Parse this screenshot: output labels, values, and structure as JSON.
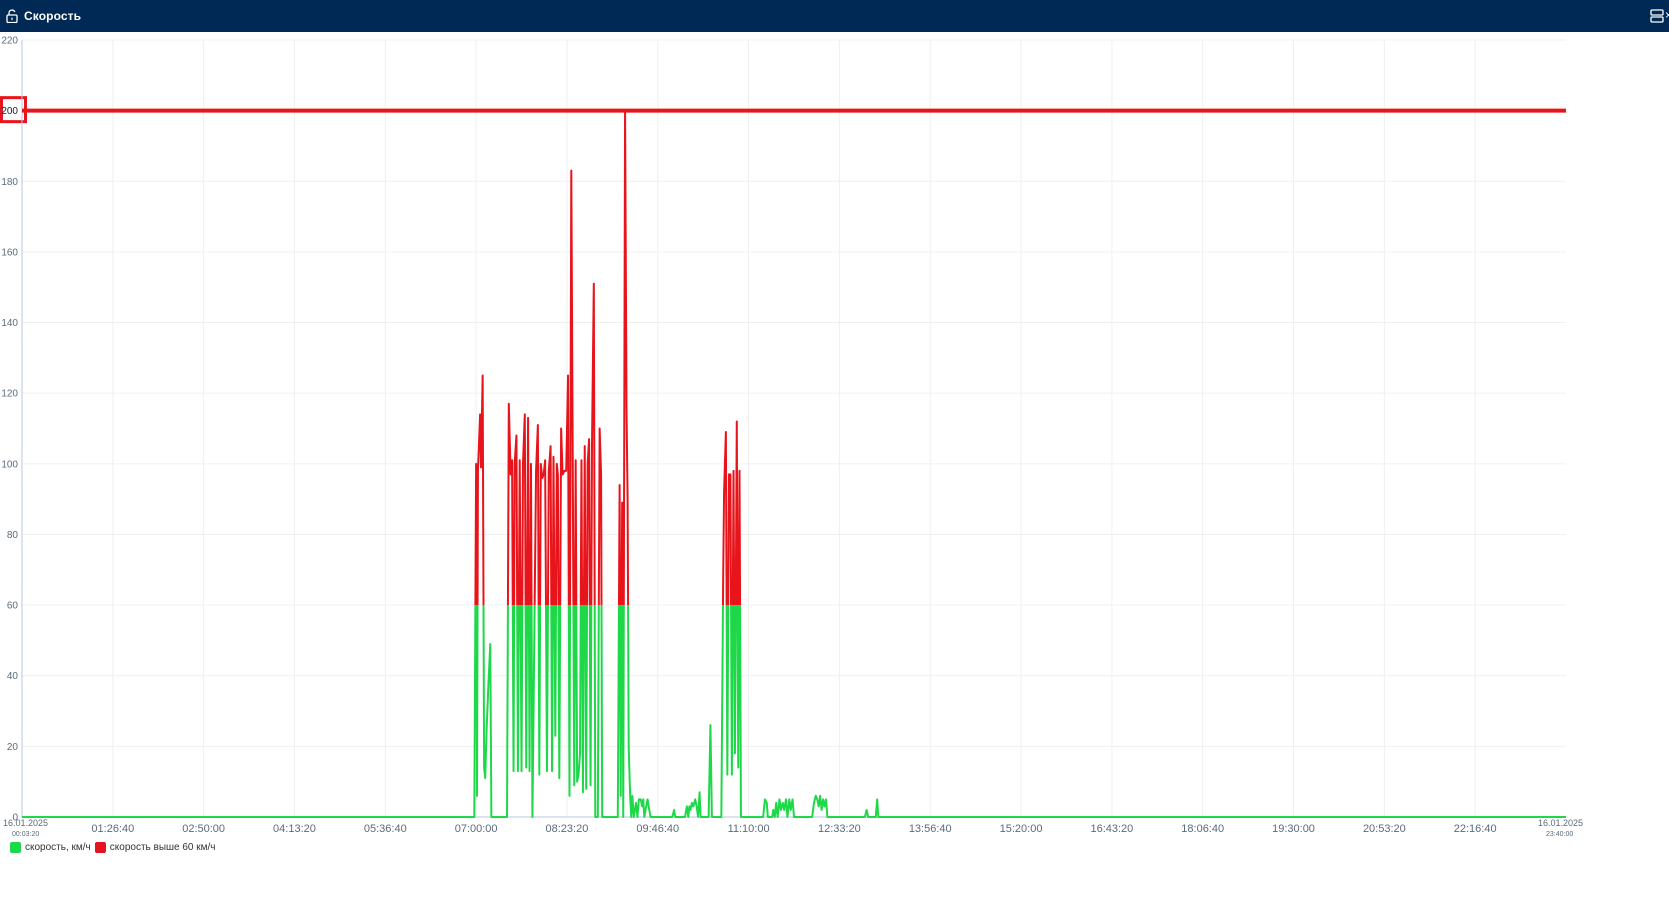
{
  "window": {
    "title": "Скорость",
    "icons": {
      "lock": "unlock-icon",
      "layout": "layout-icon",
      "close": "close-icon"
    }
  },
  "chart_data": {
    "type": "line",
    "title": "",
    "xlabel": "",
    "ylabel": "",
    "ylim": [
      0,
      220
    ],
    "yticks": [
      0,
      20,
      40,
      60,
      80,
      100,
      120,
      140,
      160,
      180,
      200,
      220
    ],
    "highlighted_ytick": 200,
    "grid": true,
    "legend_position": "bottom-left",
    "x_range_seconds": [
      200,
      85200
    ],
    "x_start_labels": [
      "16.01.2025",
      "00:03:20"
    ],
    "x_end_labels": [
      "16.01.2025",
      "23:40:00"
    ],
    "x_tick_labels": [
      "01:26:40",
      "02:50:00",
      "04:13:20",
      "05:36:40",
      "07:00:00",
      "08:23:20",
      "09:46:40",
      "11:10:00",
      "12:33:20",
      "13:56:40",
      "15:20:00",
      "16:43:20",
      "18:06:40",
      "19:30:00",
      "20:53:20",
      "22:16:40"
    ],
    "x_tick_seconds": [
      5200,
      10200,
      15200,
      20200,
      25200,
      30200,
      35200,
      40200,
      45200,
      50200,
      55200,
      60200,
      65200,
      70200,
      75200,
      80200
    ],
    "threshold": {
      "value": 60
    },
    "limit_line": {
      "value": 200,
      "color": "#e8141b"
    },
    "series": [
      {
        "name": "скорость, км/ч",
        "color": "#1fd84a"
      },
      {
        "name": "скорость выше 60 км/ч",
        "color": "#e8141b"
      }
    ],
    "points": [
      [
        200,
        0
      ],
      [
        25100,
        0
      ],
      [
        25200,
        100
      ],
      [
        25250,
        6
      ],
      [
        25300,
        98
      ],
      [
        25420,
        114
      ],
      [
        25470,
        99
      ],
      [
        25560,
        125
      ],
      [
        25640,
        14
      ],
      [
        25700,
        11
      ],
      [
        25780,
        25
      ],
      [
        25880,
        38
      ],
      [
        25980,
        49
      ],
      [
        26040,
        0
      ],
      [
        26900,
        0
      ],
      [
        27000,
        117
      ],
      [
        27100,
        97
      ],
      [
        27180,
        101
      ],
      [
        27260,
        13
      ],
      [
        27320,
        100
      ],
      [
        27420,
        108
      ],
      [
        27500,
        13
      ],
      [
        27600,
        101
      ],
      [
        27700,
        13
      ],
      [
        27780,
        100
      ],
      [
        27880,
        114
      ],
      [
        27960,
        14
      ],
      [
        28060,
        113
      ],
      [
        28140,
        13
      ],
      [
        28220,
        100
      ],
      [
        28300,
        0
      ],
      [
        28500,
        98
      ],
      [
        28600,
        111
      ],
      [
        28680,
        12
      ],
      [
        28760,
        100
      ],
      [
        28840,
        96
      ],
      [
        28920,
        97
      ],
      [
        29000,
        101
      ],
      [
        29100,
        13
      ],
      [
        29200,
        98
      ],
      [
        29300,
        105
      ],
      [
        29380,
        13
      ],
      [
        29460,
        102
      ],
      [
        29560,
        23
      ],
      [
        29640,
        100
      ],
      [
        29700,
        97
      ],
      [
        29780,
        11
      ],
      [
        29880,
        110
      ],
      [
        29960,
        97
      ],
      [
        30060,
        98
      ],
      [
        30160,
        98
      ],
      [
        30260,
        125
      ],
      [
        30340,
        6
      ],
      [
        30440,
        183
      ],
      [
        30520,
        100
      ],
      [
        30600,
        9
      ],
      [
        30680,
        101
      ],
      [
        30760,
        10
      ],
      [
        30840,
        12
      ],
      [
        30920,
        18
      ],
      [
        31000,
        101
      ],
      [
        31080,
        7
      ],
      [
        31180,
        105
      ],
      [
        31260,
        8
      ],
      [
        31340,
        100
      ],
      [
        31420,
        107
      ],
      [
        31500,
        9
      ],
      [
        31580,
        106
      ],
      [
        31680,
        151
      ],
      [
        31760,
        0
      ],
      [
        31900,
        0
      ],
      [
        32000,
        110
      ],
      [
        32080,
        97
      ],
      [
        32140,
        0
      ],
      [
        33000,
        0
      ],
      [
        33100,
        94
      ],
      [
        33160,
        6
      ],
      [
        33240,
        89
      ],
      [
        33300,
        0
      ],
      [
        33400,
        200
      ],
      [
        33480,
        115
      ],
      [
        33540,
        90
      ],
      [
        33600,
        20
      ],
      [
        33680,
        6
      ],
      [
        33740,
        0
      ],
      [
        33800,
        6
      ],
      [
        33880,
        0
      ],
      [
        34000,
        4
      ],
      [
        34080,
        0
      ],
      [
        34160,
        5
      ],
      [
        34260,
        5
      ],
      [
        34340,
        3
      ],
      [
        34400,
        5
      ],
      [
        34460,
        0
      ],
      [
        34560,
        3
      ],
      [
        34640,
        5
      ],
      [
        34700,
        3
      ],
      [
        34800,
        0
      ],
      [
        36000,
        0
      ],
      [
        36100,
        2
      ],
      [
        36160,
        0
      ],
      [
        36700,
        0
      ],
      [
        36800,
        3
      ],
      [
        36880,
        0
      ],
      [
        36940,
        3
      ],
      [
        37000,
        2
      ],
      [
        37080,
        4
      ],
      [
        37160,
        3
      ],
      [
        37260,
        5
      ],
      [
        37340,
        3
      ],
      [
        37420,
        0
      ],
      [
        37500,
        7
      ],
      [
        37560,
        0
      ],
      [
        38000,
        0
      ],
      [
        38100,
        26
      ],
      [
        38180,
        0
      ],
      [
        38700,
        0
      ],
      [
        38800,
        67
      ],
      [
        38850,
        92
      ],
      [
        38950,
        109
      ],
      [
        39030,
        12
      ],
      [
        39120,
        97
      ],
      [
        39200,
        97
      ],
      [
        39280,
        12
      ],
      [
        39370,
        98
      ],
      [
        39450,
        18
      ],
      [
        39550,
        112
      ],
      [
        39630,
        14
      ],
      [
        39700,
        98
      ],
      [
        39780,
        0
      ],
      [
        41000,
        0
      ],
      [
        41100,
        5
      ],
      [
        41200,
        4
      ],
      [
        41260,
        0
      ],
      [
        41500,
        0
      ],
      [
        41560,
        2
      ],
      [
        41640,
        0
      ],
      [
        41720,
        4
      ],
      [
        41800,
        0
      ],
      [
        41900,
        5
      ],
      [
        41980,
        2
      ],
      [
        42080,
        4
      ],
      [
        42160,
        2
      ],
      [
        42260,
        5
      ],
      [
        42340,
        0
      ],
      [
        42440,
        5
      ],
      [
        42520,
        2
      ],
      [
        42620,
        5
      ],
      [
        42700,
        0
      ],
      [
        43700,
        0
      ],
      [
        43800,
        4
      ],
      [
        43900,
        6
      ],
      [
        43980,
        5
      ],
      [
        44060,
        3
      ],
      [
        44140,
        6
      ],
      [
        44220,
        2
      ],
      [
        44300,
        5
      ],
      [
        44380,
        3
      ],
      [
        44460,
        5
      ],
      [
        44540,
        0
      ],
      [
        46600,
        0
      ],
      [
        46700,
        2
      ],
      [
        46780,
        0
      ],
      [
        47200,
        0
      ],
      [
        47280,
        5
      ],
      [
        47340,
        0
      ],
      [
        85200,
        0
      ]
    ]
  }
}
